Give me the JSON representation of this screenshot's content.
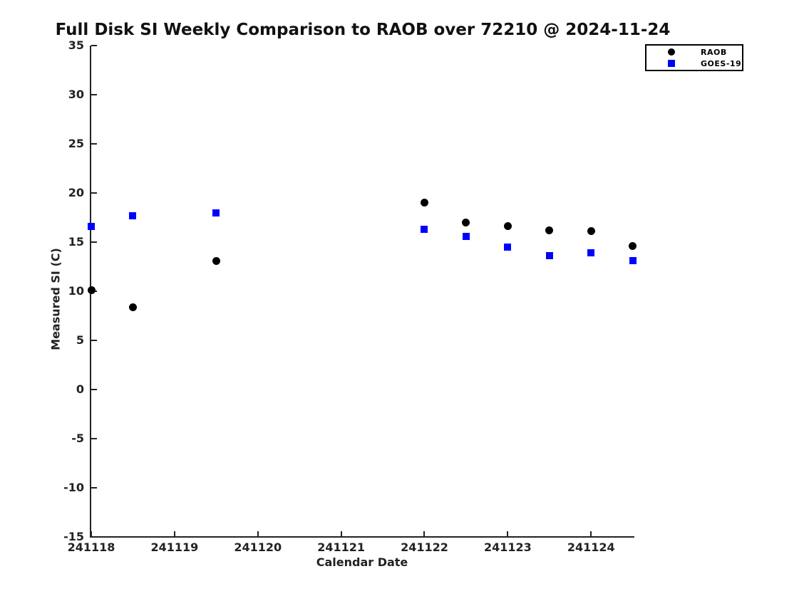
{
  "title": "Full Disk SI Weekly Comparison to RAOB over 72210 @ 2024-11-24",
  "chart_data": {
    "type": "scatter",
    "title": "Full Disk SI Weekly Comparison to RAOB over 72210 @ 2024-11-24",
    "xlabel": "Calendar Date",
    "ylabel": "Measured SI (C)",
    "xlim": [
      241118,
      241124.52
    ],
    "ylim": [
      -15,
      35
    ],
    "xticks": [
      241118,
      241119,
      241120,
      241121,
      241122,
      241123,
      241124
    ],
    "yticks": [
      35,
      30,
      25,
      20,
      15,
      10,
      5,
      0,
      -5,
      -10,
      -15
    ],
    "grid": false,
    "legend_position": "top-right",
    "series": [
      {
        "name": "RAOB",
        "marker": "circle",
        "color": "#000000",
        "points": [
          [
            241118.0,
            10.1
          ],
          [
            241118.5,
            8.4
          ],
          [
            241119.5,
            13.1
          ],
          [
            241122.0,
            19.0
          ],
          [
            241122.5,
            17.0
          ],
          [
            241123.0,
            16.6
          ],
          [
            241123.5,
            16.2
          ],
          [
            241124.0,
            16.1
          ],
          [
            241124.5,
            14.6
          ]
        ]
      },
      {
        "name": "GOES-19",
        "marker": "square",
        "color": "#0000ff",
        "points": [
          [
            241118.0,
            16.6
          ],
          [
            241118.5,
            17.7
          ],
          [
            241119.5,
            18.0
          ],
          [
            241122.0,
            16.3
          ],
          [
            241122.5,
            15.6
          ],
          [
            241123.0,
            14.5
          ],
          [
            241123.5,
            13.6
          ],
          [
            241124.0,
            13.9
          ],
          [
            241124.5,
            13.1
          ]
        ]
      }
    ]
  }
}
